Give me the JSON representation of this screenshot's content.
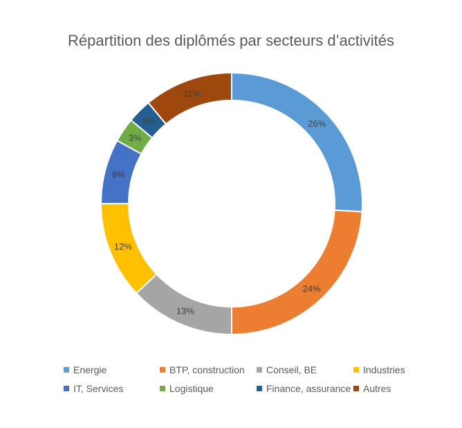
{
  "chart_data": {
    "type": "pie",
    "title": "Répartition des diplômés par secteurs d’activités",
    "subtitle": "",
    "legend_position": "bottom",
    "hole": "donut",
    "categories": [
      "Energie",
      "BTP, construction",
      "Conseil, BE",
      "Industries",
      "IT, Services",
      "Logistique",
      "Finance, assurance",
      "Autres"
    ],
    "values": [
      26,
      24,
      13,
      12,
      8,
      3,
      3,
      11
    ],
    "data_labels": [
      "26%",
      "24%",
      "13%",
      "12%",
      "8%",
      "3%",
      "3%",
      "11%"
    ],
    "colors": [
      "#5b9bd5",
      "#ed7d31",
      "#a5a5a5",
      "#ffc000",
      "#4472c4",
      "#70ad47",
      "#255e91",
      "#9e480e"
    ]
  }
}
